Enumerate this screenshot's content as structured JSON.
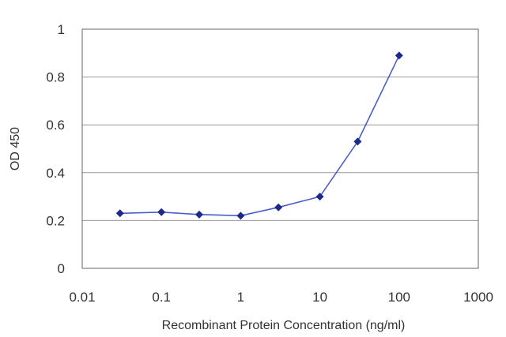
{
  "chart_data": {
    "type": "line",
    "title": "",
    "xlabel": "Recombinant Protein Concentration (ng/ml)",
    "ylabel": "OD 450",
    "x_scale": "log",
    "xlim": [
      0.01,
      1000
    ],
    "ylim": [
      0,
      1
    ],
    "x_ticks": [
      "0.01",
      "0.1",
      "1",
      "10",
      "100",
      "1000"
    ],
    "y_ticks": [
      "0",
      "0.2",
      "0.4",
      "0.6",
      "0.8",
      "1"
    ],
    "grid": "horizontal",
    "legend": "none",
    "colors": {
      "line": "#4b5dc8",
      "marker": "#1b2a8a",
      "grid": "#999999",
      "frame": "#666666"
    },
    "series": [
      {
        "x": [
          0.03,
          0.1,
          0.3,
          1,
          3,
          10,
          30,
          100
        ],
        "y": [
          0.23,
          0.235,
          0.225,
          0.22,
          0.255,
          0.3,
          0.53,
          0.89
        ]
      }
    ]
  }
}
